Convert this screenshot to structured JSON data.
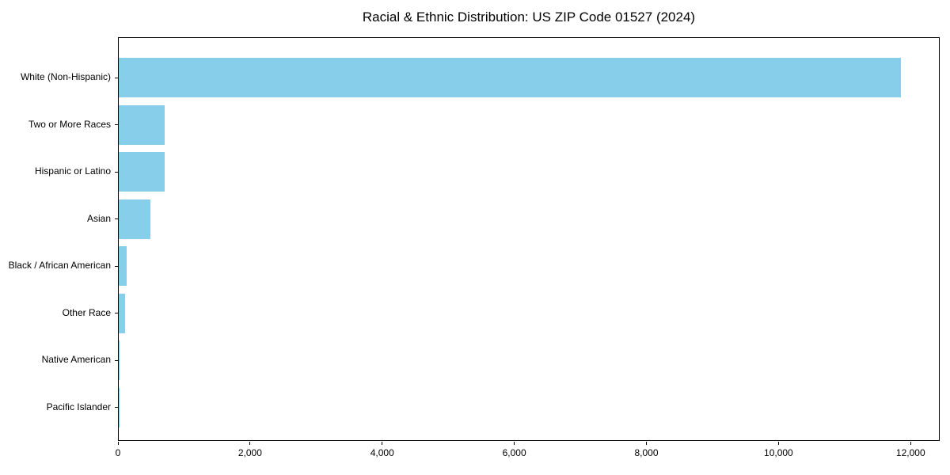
{
  "title": "Racial & Ethnic Distribution: US ZIP Code 01527 (2024)",
  "chart_data": {
    "type": "bar",
    "orientation": "horizontal",
    "title": "Racial & Ethnic Distribution: US ZIP Code 01527 (2024)",
    "xlabel": "",
    "ylabel": "",
    "categories": [
      "White (Non-Hispanic)",
      "Two or More Races",
      "Hispanic or Latino",
      "Asian",
      "Black / African American",
      "Other Race",
      "Native American",
      "Pacific Islander"
    ],
    "values": [
      11845,
      700,
      690,
      485,
      125,
      90,
      10,
      2
    ],
    "xlim": [
      0,
      12440
    ],
    "x_ticks": [
      0,
      2000,
      4000,
      6000,
      8000,
      10000,
      12000
    ],
    "x_tick_labels": [
      "0",
      "2,000",
      "4,000",
      "6,000",
      "8,000",
      "10,000",
      "12,000"
    ],
    "bar_color": "#87CEEB",
    "grid": false,
    "legend": null
  }
}
